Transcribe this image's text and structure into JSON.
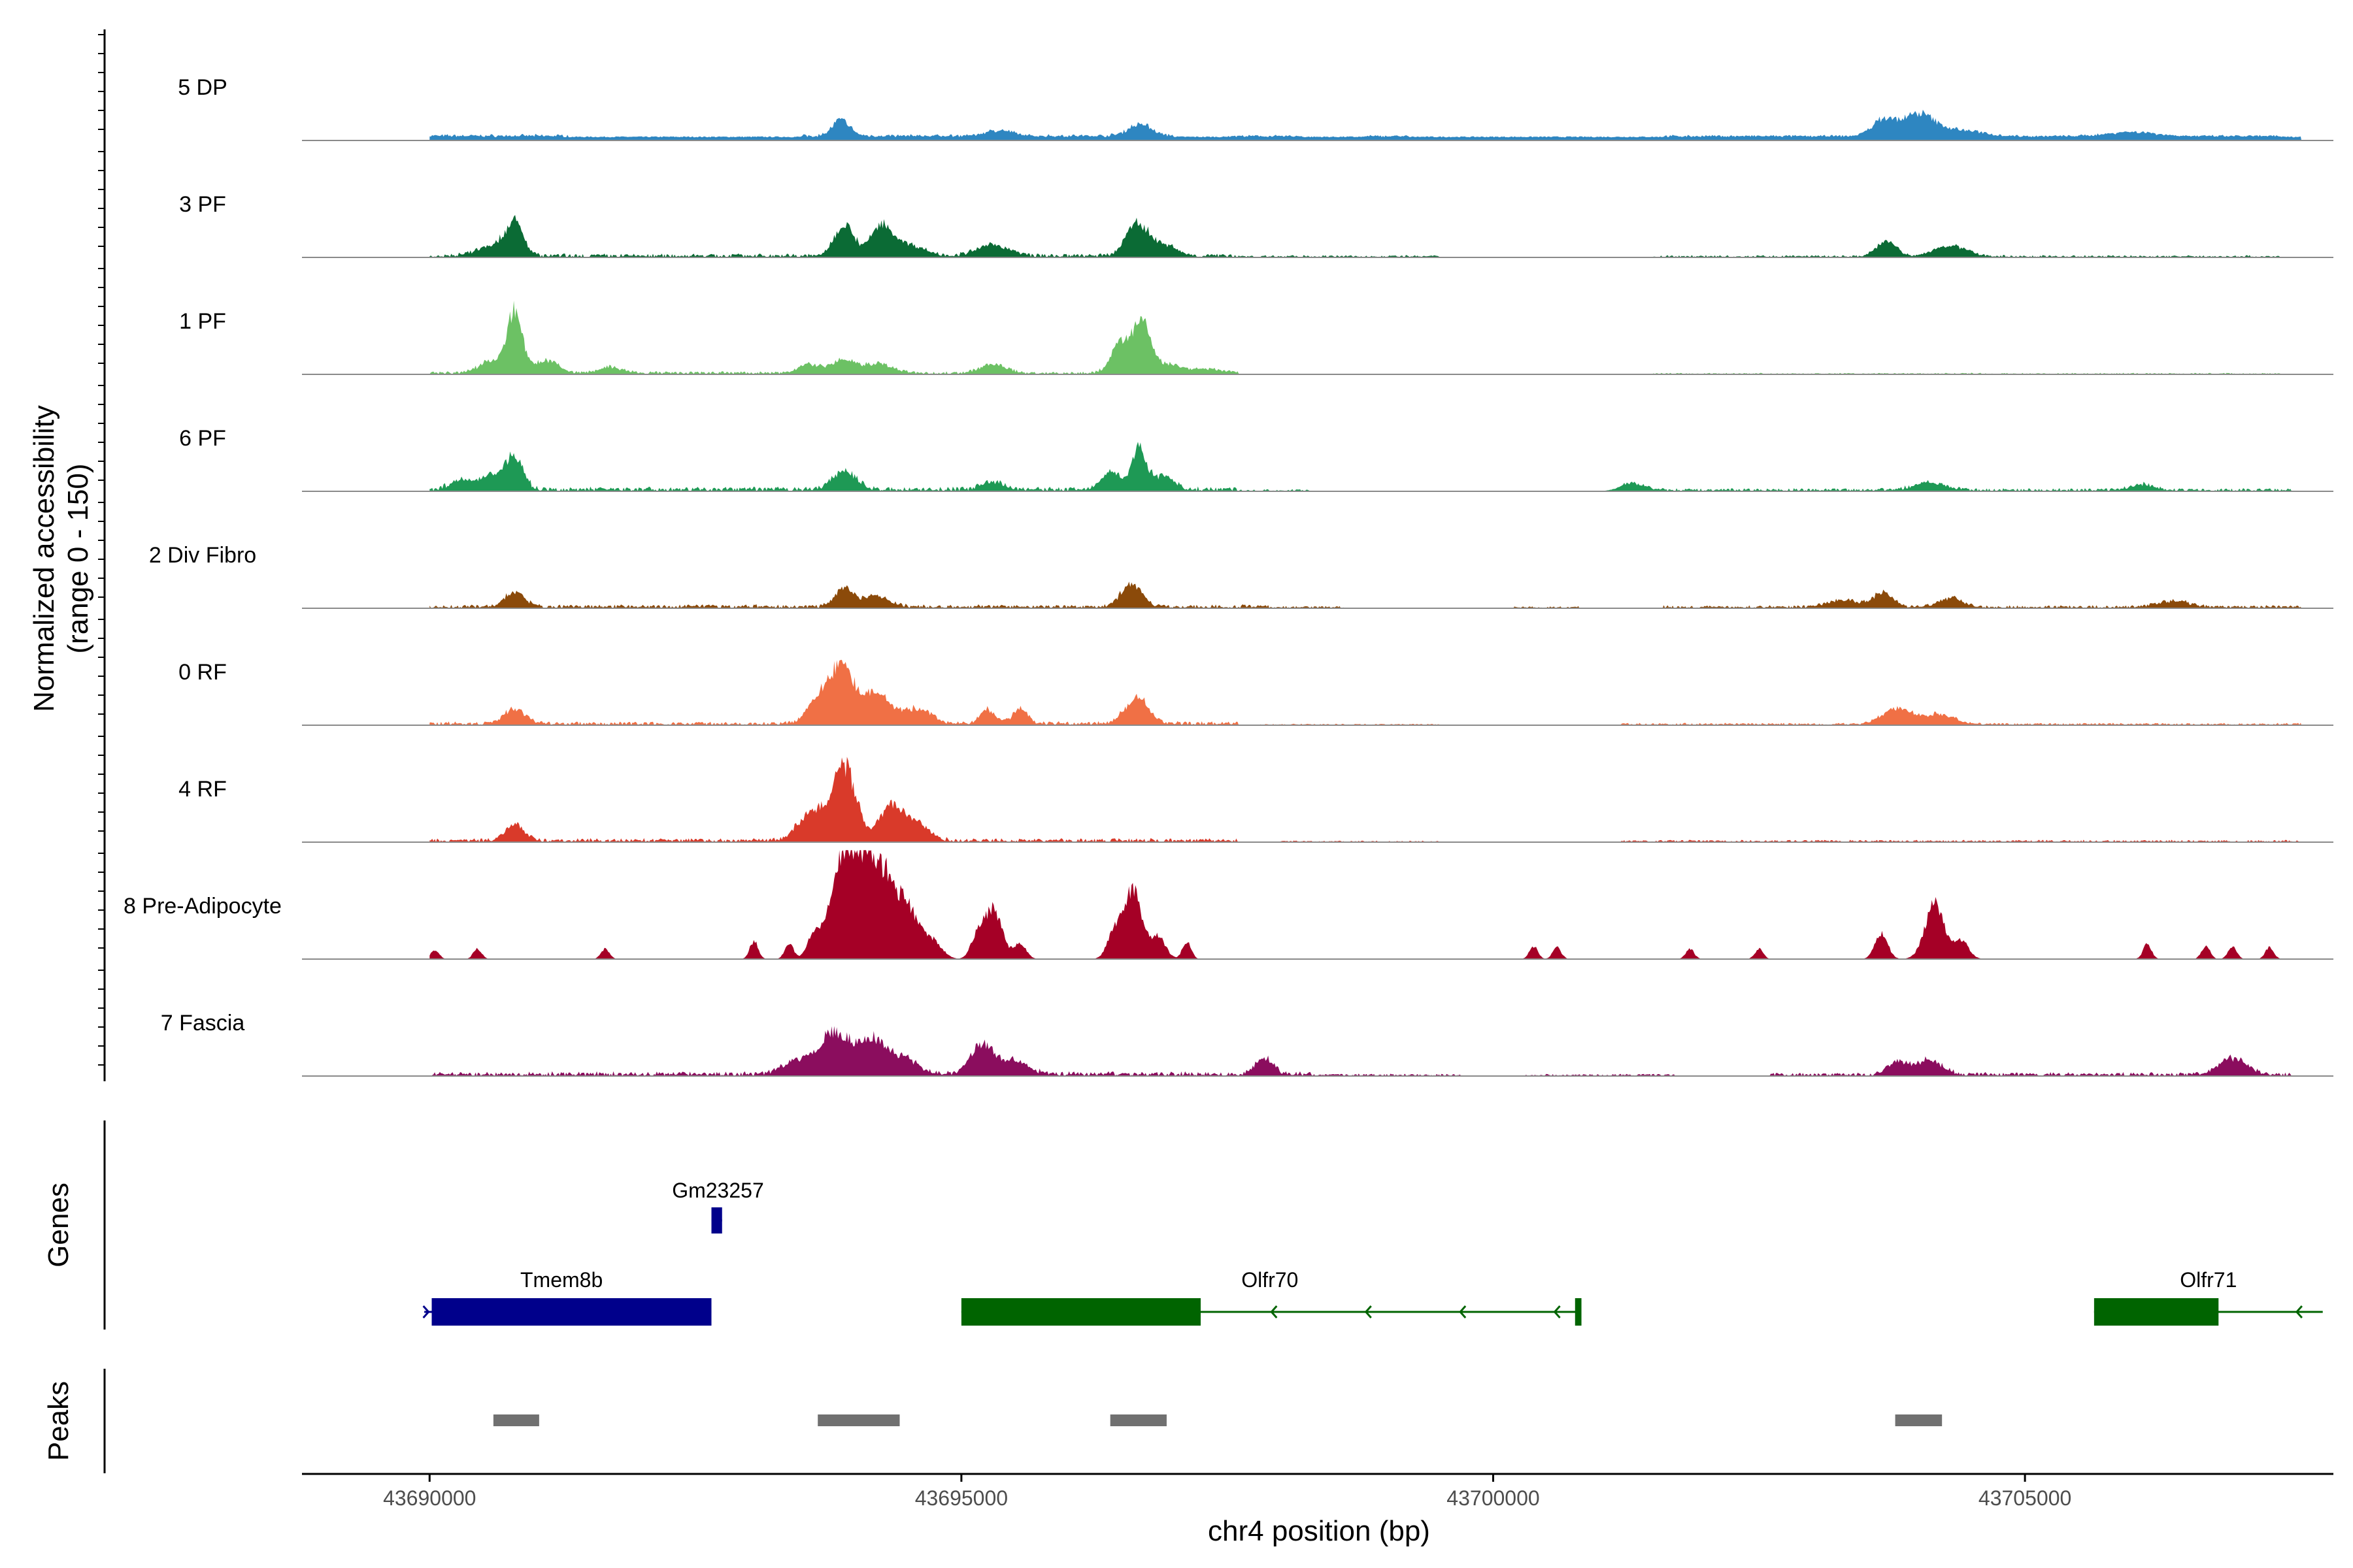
{
  "chart_data": {
    "type": "area",
    "xlabel": "chr4 position (bp)",
    "ylabel_lines": [
      "Normalized accessibility",
      "(range 0 - 150)"
    ],
    "y_range": [
      0,
      150
    ],
    "xlim": [
      43688800,
      43707900
    ],
    "x_ticks": [
      43690000,
      43695000,
      43700000,
      43705000
    ],
    "x_tick_labels": [
      "43690000",
      "43695000",
      "43700000",
      "43705000"
    ],
    "tracks": [
      {
        "name": "5 DP",
        "color": "#2e86c1",
        "peaks": [
          [
            43690300,
            43691200,
            5
          ],
          [
            43693870,
            80,
            22
          ],
          [
            43695350,
            120,
            8
          ],
          [
            43696680,
            110,
            16
          ],
          [
            43703670,
            110,
            22
          ],
          [
            43704000,
            150,
            30
          ],
          [
            43704400,
            200,
            8
          ],
          [
            43706000,
            220,
            6
          ]
        ],
        "noise": [
          [
            43690000,
            43691300,
            3
          ],
          [
            43693500,
            43697000,
            3
          ],
          [
            43697500,
            43698200,
            2
          ],
          [
            43698800,
            43699200,
            2
          ],
          [
            43701600,
            43707400,
            2
          ]
        ]
      },
      {
        "name": "3 PF",
        "color": "#0b6b35",
        "peaks": [
          [
            43690800,
            80,
            42
          ],
          [
            43690600,
            150,
            15
          ],
          [
            43693900,
            90,
            45
          ],
          [
            43694250,
            100,
            40
          ],
          [
            43694500,
            150,
            15
          ],
          [
            43695300,
            150,
            15
          ],
          [
            43696650,
            100,
            45
          ],
          [
            43696900,
            120,
            15
          ],
          [
            43703700,
            90,
            22
          ],
          [
            43704300,
            150,
            15
          ]
        ],
        "noise": [
          [
            43690000,
            43697600,
            5
          ],
          [
            43697600,
            43699500,
            3
          ],
          [
            43701500,
            43707400,
            3
          ]
        ]
      },
      {
        "name": "1 PF",
        "color": "#6cc164",
        "peaks": [
          [
            43690800,
            70,
            85
          ],
          [
            43690580,
            110,
            18
          ],
          [
            43691100,
            110,
            18
          ],
          [
            43691700,
            110,
            8
          ],
          [
            43693550,
            90,
            12
          ],
          [
            43693900,
            140,
            18
          ],
          [
            43694250,
            120,
            12
          ],
          [
            43695300,
            120,
            12
          ],
          [
            43696500,
            90,
            40
          ],
          [
            43696700,
            80,
            70
          ],
          [
            43696950,
            110,
            12
          ],
          [
            43697300,
            160,
            6
          ]
        ],
        "noise": [
          [
            43690000,
            43697600,
            4
          ],
          [
            43701500,
            43707400,
            2
          ]
        ]
      },
      {
        "name": "6 PF",
        "color": "#1e9955",
        "peaks": [
          [
            43690800,
            80,
            42
          ],
          [
            43690300,
            110,
            12
          ],
          [
            43690600,
            120,
            20
          ],
          [
            43693900,
            110,
            25
          ],
          [
            43696400,
            90,
            25
          ],
          [
            43696670,
            70,
            55
          ],
          [
            43696900,
            100,
            18
          ],
          [
            43695300,
            110,
            10
          ],
          [
            43701300,
            110,
            10
          ],
          [
            43704100,
            150,
            10
          ],
          [
            43706100,
            110,
            8
          ]
        ],
        "noise": [
          [
            43690000,
            43697600,
            6
          ],
          [
            43697600,
            43698300,
            3
          ],
          [
            43701200,
            43707500,
            4
          ]
        ]
      },
      {
        "name": "2 Div Fibro",
        "color": "#8b4a0a",
        "peaks": [
          [
            43690800,
            90,
            20
          ],
          [
            43693900,
            90,
            25
          ],
          [
            43694200,
            120,
            15
          ],
          [
            43696600,
            100,
            30
          ],
          [
            43703300,
            150,
            10
          ],
          [
            43703670,
            90,
            20
          ],
          [
            43704300,
            120,
            12
          ],
          [
            43706400,
            150,
            8
          ]
        ],
        "noise": [
          [
            43690000,
            43697900,
            5
          ],
          [
            43697900,
            43698600,
            3
          ],
          [
            43700200,
            43700800,
            3
          ],
          [
            43701600,
            43707600,
            4
          ]
        ]
      },
      {
        "name": "0 RF",
        "color": "#f07045",
        "peaks": [
          [
            43693870,
            110,
            75
          ],
          [
            43693650,
            100,
            32
          ],
          [
            43694200,
            140,
            45
          ],
          [
            43694600,
            120,
            20
          ],
          [
            43695250,
            70,
            20
          ],
          [
            43695550,
            70,
            20
          ],
          [
            43696650,
            110,
            35
          ],
          [
            43690800,
            100,
            20
          ],
          [
            43703800,
            140,
            22
          ],
          [
            43704200,
            140,
            14
          ]
        ],
        "noise": [
          [
            43690000,
            43697600,
            5
          ],
          [
            43697800,
            43699500,
            2
          ],
          [
            43701200,
            43707600,
            3
          ]
        ]
      },
      {
        "name": "4 RF",
        "color": "#d93a2a",
        "peaks": [
          [
            43693900,
            110,
            100
          ],
          [
            43693600,
            130,
            40
          ],
          [
            43694350,
            110,
            50
          ],
          [
            43694600,
            110,
            20
          ],
          [
            43690800,
            90,
            22
          ]
        ],
        "noise": [
          [
            43690000,
            43697600,
            5
          ],
          [
            43698000,
            43699500,
            2
          ],
          [
            43701200,
            43707600,
            3
          ]
        ]
      },
      {
        "name": "8 Pre-Adipocyte",
        "color": "#a50026",
        "peaks": [
          [
            43693930,
            160,
            150
          ],
          [
            43694250,
            140,
            110
          ],
          [
            43694520,
            110,
            55
          ],
          [
            43694750,
            80,
            20
          ],
          [
            43695300,
            80,
            70
          ],
          [
            43695150,
            60,
            30
          ],
          [
            43695550,
            60,
            20
          ],
          [
            43696620,
            80,
            95
          ],
          [
            43696450,
            70,
            40
          ],
          [
            43696850,
            70,
            30
          ],
          [
            43697120,
            40,
            25
          ],
          [
            43693050,
            40,
            25
          ],
          [
            43693380,
            40,
            22
          ],
          [
            43690050,
            40,
            12
          ],
          [
            43690450,
            40,
            14
          ],
          [
            43691650,
            40,
            14
          ],
          [
            43693600,
            50,
            20
          ],
          [
            43700380,
            40,
            18
          ],
          [
            43700600,
            40,
            16
          ],
          [
            43701850,
            40,
            14
          ],
          [
            43702500,
            40,
            14
          ],
          [
            43703650,
            60,
            35
          ],
          [
            43704150,
            90,
            75
          ],
          [
            43704400,
            70,
            25
          ],
          [
            43706150,
            40,
            20
          ],
          [
            43706700,
            40,
            18
          ],
          [
            43706950,
            40,
            18
          ],
          [
            43707300,
            40,
            16
          ]
        ],
        "noise": []
      },
      {
        "name": "7 Fascia",
        "color": "#8b0d5e",
        "peaks": [
          [
            43693800,
            140,
            55
          ],
          [
            43694150,
            140,
            45
          ],
          [
            43694450,
            140,
            20
          ],
          [
            43695200,
            110,
            40
          ],
          [
            43695500,
            130,
            18
          ],
          [
            43693450,
            130,
            18
          ],
          [
            43697850,
            80,
            22
          ],
          [
            43703800,
            90,
            18
          ],
          [
            43704100,
            120,
            20
          ],
          [
            43706950,
            130,
            22
          ]
        ],
        "noise": [
          [
            43690000,
            43698300,
            6
          ],
          [
            43698300,
            43699700,
            3
          ],
          [
            43700300,
            43701700,
            3
          ],
          [
            43702600,
            43707500,
            5
          ]
        ]
      }
    ],
    "genes": [
      {
        "name": "Gm23257",
        "start": 43692650,
        "end": 43692750,
        "strand": "+",
        "row": 1,
        "color": "#00008b",
        "exons": [
          [
            43692650,
            43692750
          ]
        ]
      },
      {
        "name": "Tmem8b",
        "start": 43689950,
        "end": 43692650,
        "strand": "+",
        "row": 2,
        "color": "#00008b",
        "exons": [
          [
            43690020,
            43692650
          ]
        ]
      },
      {
        "name": "Olfr70",
        "start": 43695000,
        "end": 43700800,
        "strand": "-",
        "row": 2,
        "color": "#006400",
        "exons": [
          [
            43695000,
            43697250
          ],
          [
            43700770,
            43700830
          ]
        ]
      },
      {
        "name": "Olfr71",
        "start": 43705650,
        "end": 43707800,
        "strand": "-",
        "row": 2,
        "color": "#006400",
        "exons": [
          [
            43705650,
            43706820
          ]
        ]
      }
    ],
    "gene_panel_label": "Genes",
    "peak_panel_label": "Peaks",
    "peak_regions": [
      [
        43690600,
        43691030
      ],
      [
        43693650,
        43694420
      ],
      [
        43696400,
        43696930
      ],
      [
        43703780,
        43704220
      ]
    ],
    "peak_color": "#707070"
  }
}
